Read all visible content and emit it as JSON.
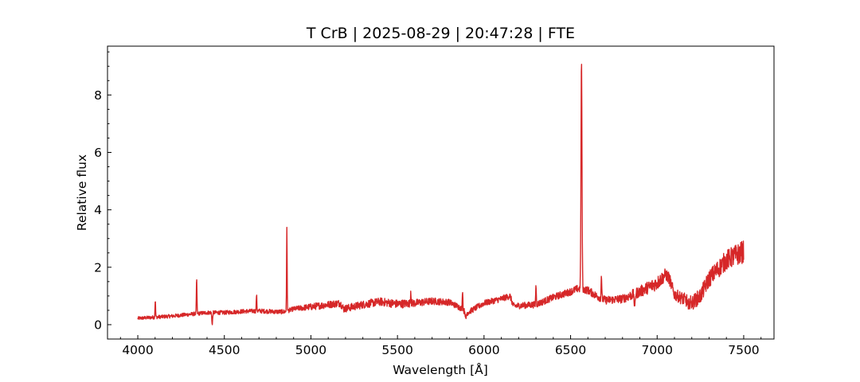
{
  "chart_data": {
    "type": "line",
    "title": "T CrB | 2025-08-29 | 20:47:28 | FTE",
    "xlabel": "Wavelength [Å]",
    "ylabel": "Relative flux",
    "xlim": [
      3825,
      7675
    ],
    "ylim": [
      -0.5,
      9.7
    ],
    "xticks": [
      4000,
      4500,
      5000,
      5500,
      6000,
      6500,
      7000,
      7500
    ],
    "xtick_labels": [
      "4000",
      "4500",
      "5000",
      "5500",
      "6000",
      "6500",
      "7000",
      "7500"
    ],
    "yticks": [
      0,
      2,
      4,
      6,
      8
    ],
    "ytick_labels": [
      "0",
      "2",
      "4",
      "6",
      "8"
    ],
    "x_minor_step": 100,
    "y_minor_step": 0.5,
    "tick_direction": "in",
    "grid": false,
    "legend": "none",
    "line_color": "#d62728",
    "series": [
      {
        "continuum": [
          [
            4000,
            0.22
          ],
          [
            4100,
            0.26
          ],
          [
            4200,
            0.3
          ],
          [
            4300,
            0.36
          ],
          [
            4400,
            0.42
          ],
          [
            4500,
            0.42
          ],
          [
            4600,
            0.46
          ],
          [
            4700,
            0.48
          ],
          [
            4800,
            0.45
          ],
          [
            4850,
            0.45
          ],
          [
            4900,
            0.55
          ],
          [
            5000,
            0.62
          ],
          [
            5100,
            0.7
          ],
          [
            5170,
            0.75
          ],
          [
            5190,
            0.55
          ],
          [
            5300,
            0.7
          ],
          [
            5400,
            0.8
          ],
          [
            5500,
            0.72
          ],
          [
            5600,
            0.75
          ],
          [
            5700,
            0.82
          ],
          [
            5800,
            0.78
          ],
          [
            5860,
            0.6
          ],
          [
            5900,
            0.4
          ],
          [
            6000,
            0.75
          ],
          [
            6100,
            0.9
          ],
          [
            6150,
            1.0
          ],
          [
            6170,
            0.65
          ],
          [
            6300,
            0.7
          ],
          [
            6400,
            0.95
          ],
          [
            6500,
            1.15
          ],
          [
            6540,
            1.25
          ],
          [
            6600,
            1.2
          ],
          [
            6650,
            1.0
          ],
          [
            6700,
            0.85
          ],
          [
            6800,
            0.9
          ],
          [
            6900,
            1.15
          ],
          [
            7000,
            1.45
          ],
          [
            7050,
            1.75
          ],
          [
            7070,
            1.6
          ],
          [
            7100,
            1.05
          ],
          [
            7200,
            0.75
          ],
          [
            7250,
            1.0
          ],
          [
            7300,
            1.6
          ],
          [
            7400,
            2.25
          ],
          [
            7500,
            2.55
          ]
        ],
        "noise": [
          [
            4000,
            0.06
          ],
          [
            4900,
            0.08
          ],
          [
            5000,
            0.12
          ],
          [
            5500,
            0.15
          ],
          [
            5900,
            0.1
          ],
          [
            6400,
            0.12
          ],
          [
            6800,
            0.15
          ],
          [
            7000,
            0.25
          ],
          [
            7100,
            0.2
          ],
          [
            7200,
            0.25
          ],
          [
            7300,
            0.3
          ],
          [
            7500,
            0.4
          ]
        ],
        "emission_lines": [
          {
            "center": 4101,
            "peak": 0.85
          },
          {
            "center": 4340,
            "peak": 1.62
          },
          {
            "center": 4686,
            "peak": 1.05
          },
          {
            "center": 4861,
            "peak": 3.32
          },
          {
            "center": 5577,
            "peak": 1.18
          },
          {
            "center": 5876,
            "peak": 1.25
          },
          {
            "center": 6300,
            "peak": 1.42
          },
          {
            "center": 6563,
            "peak": 9.25
          },
          {
            "center": 6678,
            "peak": 1.78
          }
        ],
        "absorption_dips": [
          {
            "center": 4430,
            "min": -0.02
          },
          {
            "center": 5895,
            "min": 0.15
          },
          {
            "center": 6870,
            "min": 0.45
          },
          {
            "center": 7180,
            "min": 0.45
          }
        ]
      }
    ]
  }
}
